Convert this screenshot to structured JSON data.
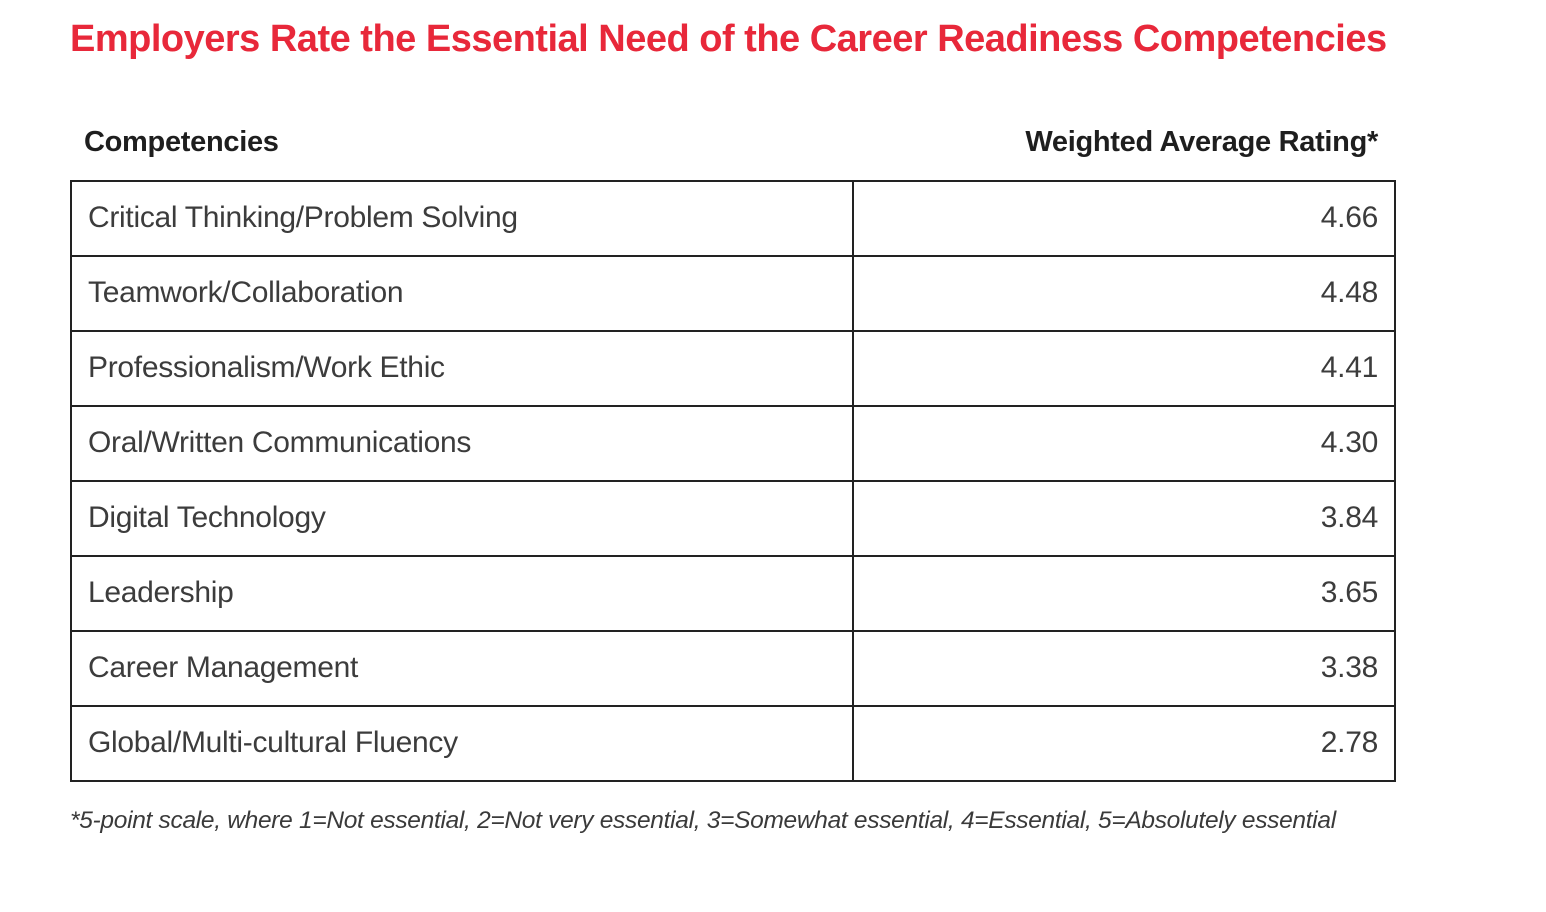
{
  "page": {
    "title": "Employers Rate the Essential Need of the Career Readiness Competencies",
    "footnote": "*5-point scale, where 1=Not essential, 2=Not very essential, 3=Somewhat essential, 4=Essential, 5=Absolutely essential"
  },
  "table": {
    "headers": {
      "competency": "Competencies",
      "rating": "Weighted Average Rating*"
    },
    "rows": [
      {
        "competency": "Critical Thinking/Problem Solving",
        "rating": "4.66"
      },
      {
        "competency": "Teamwork/Collaboration",
        "rating": "4.48"
      },
      {
        "competency": "Professionalism/Work Ethic",
        "rating": "4.41"
      },
      {
        "competency": "Oral/Written Communications",
        "rating": "4.30"
      },
      {
        "competency": "Digital Technology",
        "rating": "3.84"
      },
      {
        "competency": "Leadership",
        "rating": "3.65"
      },
      {
        "competency": "Career Management",
        "rating": "3.38"
      },
      {
        "competency": "Global/Multi-cultural Fluency",
        "rating": "2.78"
      }
    ]
  },
  "colors": {
    "title_red": "#e8283a",
    "header_text": "#1e1e1e",
    "body_text": "#3c3c3c",
    "border": "#222222",
    "background": "#ffffff"
  },
  "chart_data": {
    "type": "table",
    "title": "Employers Rate the Essential Need of the Career Readiness Competencies",
    "columns": [
      "Competencies",
      "Weighted Average Rating*"
    ],
    "categories": [
      "Critical Thinking/Problem Solving",
      "Teamwork/Collaboration",
      "Professionalism/Work Ethic",
      "Oral/Written Communications",
      "Digital Technology",
      "Leadership",
      "Career Management",
      "Global/Multi-cultural Fluency"
    ],
    "values": [
      4.66,
      4.48,
      4.41,
      4.3,
      3.84,
      3.65,
      3.38,
      2.78
    ],
    "value_range": [
      1,
      5
    ],
    "footnote": "*5-point scale, where 1=Not essential, 2=Not very essential, 3=Somewhat essential, 4=Essential, 5=Absolutely essential"
  }
}
